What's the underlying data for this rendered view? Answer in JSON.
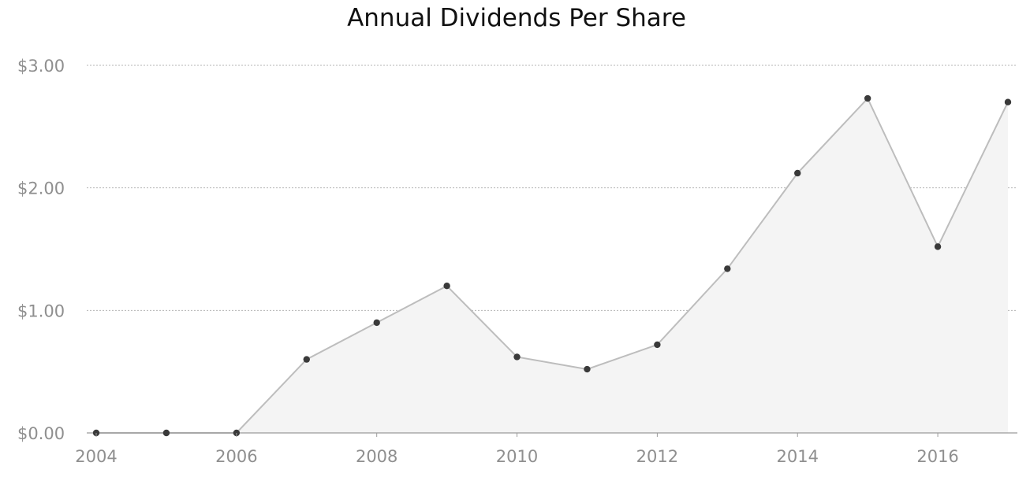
{
  "chart_data": {
    "type": "area",
    "title": "Annual Dividends Per Share",
    "xlabel": "",
    "ylabel": "",
    "x": [
      2004,
      2005,
      2006,
      2007,
      2008,
      2009,
      2010,
      2011,
      2012,
      2013,
      2014,
      2015,
      2016,
      2017
    ],
    "series": [
      {
        "values": [
          0.0,
          0.0,
          0.0,
          0.6,
          0.9,
          1.2,
          0.62,
          0.52,
          0.72,
          1.34,
          2.12,
          2.73,
          1.52,
          2.7
        ]
      }
    ],
    "xlim": [
      2004,
      2017
    ],
    "ylim": [
      0,
      3
    ],
    "x_ticks": [
      2004,
      2006,
      2008,
      2010,
      2012,
      2014,
      2016
    ],
    "x_tick_labels": [
      "2004",
      "2006",
      "2008",
      "2010",
      "2012",
      "2014",
      "2016"
    ],
    "y_ticks": [
      0,
      1,
      2,
      3
    ],
    "y_tick_labels": [
      "$0.00",
      "$1.00",
      "$2.00",
      "$3.00"
    ],
    "grid": true,
    "legend": "none",
    "colors": {
      "area_fill": "#f4f4f4",
      "line": "#bdbdbd",
      "points": "#3a3a3a",
      "grid": "#b5b5b5",
      "tick_text": "#8f8f8f",
      "title_text": "#111111"
    }
  }
}
